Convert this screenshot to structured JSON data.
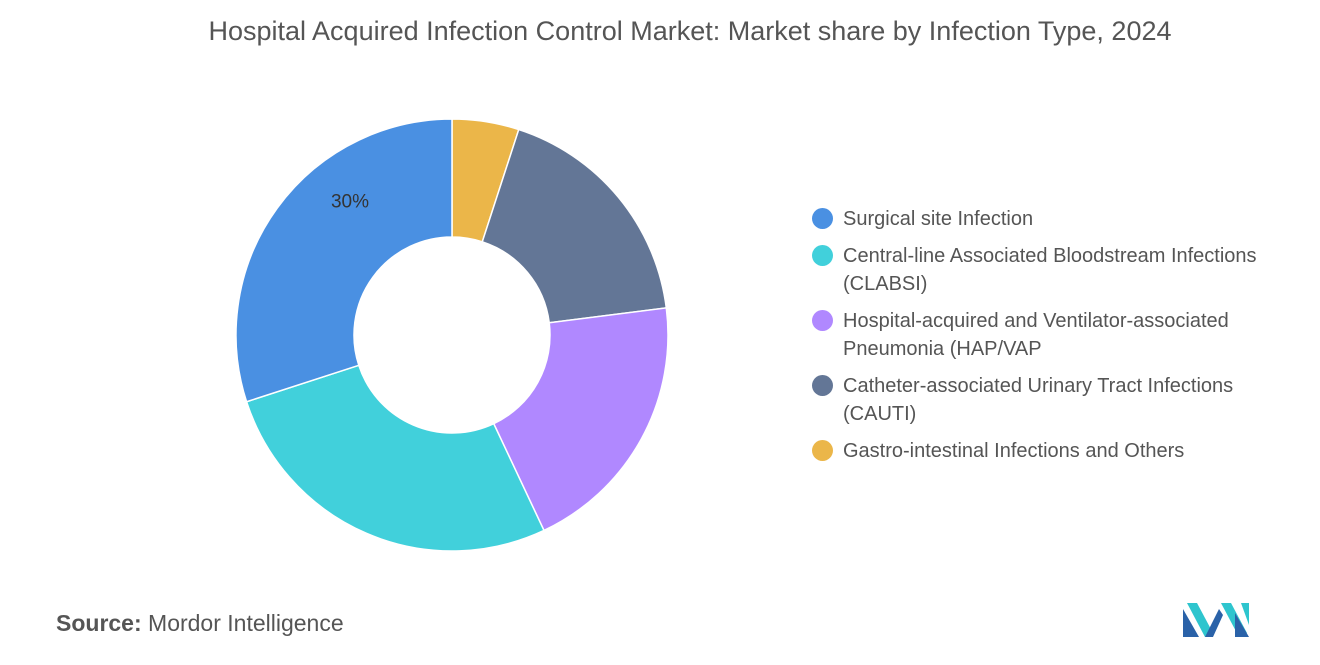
{
  "title": "Hospital Acquired Infection Control Market: Market share by Infection Type, 2024",
  "source": {
    "label": "Source:",
    "value": "Mordor Intelligence"
  },
  "logo_icon": "mordor-intelligence-logo-icon",
  "chart_data": {
    "type": "pie",
    "donut": true,
    "title": "Hospital Acquired Infection Control Market: Market share by Infection Type, 2024",
    "legend_position": "right",
    "slices": [
      {
        "name": "Surgical site Infection",
        "value": 30,
        "color": "#4A90E2",
        "label": "30%"
      },
      {
        "name": "Central-line Associated Bloodstream Infections (CLABSI)",
        "value": 27,
        "color": "#41D0DB",
        "label": ""
      },
      {
        "name": "Hospital-acquired and Ventilator-associated Pneumonia (HAP/VAP",
        "value": 20,
        "color": "#B088FF",
        "label": ""
      },
      {
        "name": "Catheter-associated Urinary Tract Infections (CAUTI)",
        "value": 18,
        "color": "#637696",
        "label": ""
      },
      {
        "name": "Gastro-intestinal Infections and Others",
        "value": 5,
        "color": "#EBB649",
        "label": ""
      }
    ]
  }
}
